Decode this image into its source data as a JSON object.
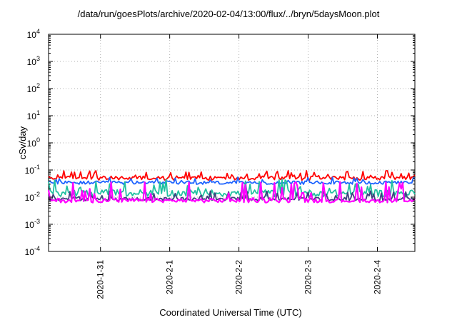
{
  "chart_data": {
    "type": "line",
    "title": "/data/run/goesPlots/archive/2020-02-04/13:00/flux/../bryn/5daysMoon.plot",
    "xlabel": "Coordinated Universal Time (UTC)",
    "ylabel": "cSv/day",
    "y_scale": "log",
    "ylim": [
      0.0001,
      10000
    ],
    "y_ticks": [
      {
        "value": 0.0001,
        "exp": "-4"
      },
      {
        "value": 0.001,
        "exp": "-3"
      },
      {
        "value": 0.01,
        "exp": "-2"
      },
      {
        "value": 0.1,
        "exp": "-1"
      },
      {
        "value": 1,
        "exp": "0"
      },
      {
        "value": 10,
        "exp": "1"
      },
      {
        "value": 100,
        "exp": "2"
      },
      {
        "value": 1000,
        "exp": "3"
      },
      {
        "value": 10000,
        "exp": "4"
      }
    ],
    "y_tick_base": "10",
    "xlim": [
      "2020-01-30T06:00",
      "2020-02-04T13:00"
    ],
    "x_ticks": [
      {
        "label": "2020-1-31",
        "value": "2020-01-31"
      },
      {
        "label": "2020-2-1",
        "value": "2020-02-01"
      },
      {
        "label": "2020-2-2",
        "value": "2020-02-02"
      },
      {
        "label": "2020-2-3",
        "value": "2020-02-03"
      },
      {
        "label": "2020-2-4",
        "value": "2020-02-04"
      }
    ],
    "grid": true,
    "series": [
      {
        "color": "#ff0000",
        "base": 0.05,
        "spread": 0.15,
        "spike": 0.9
      },
      {
        "color": "#1e64ff",
        "base": 0.034,
        "spread": 0.12,
        "spike": 0.6
      },
      {
        "color": "#20c0a0",
        "base": 0.014,
        "spread": 0.25,
        "spike": 2.2
      },
      {
        "color": "#404080",
        "base": 0.0085,
        "spread": 0.12,
        "spike": 1.0
      },
      {
        "color": "#ff00ff",
        "base": 0.0075,
        "spread": 0.15,
        "spike": 4.0
      }
    ]
  }
}
